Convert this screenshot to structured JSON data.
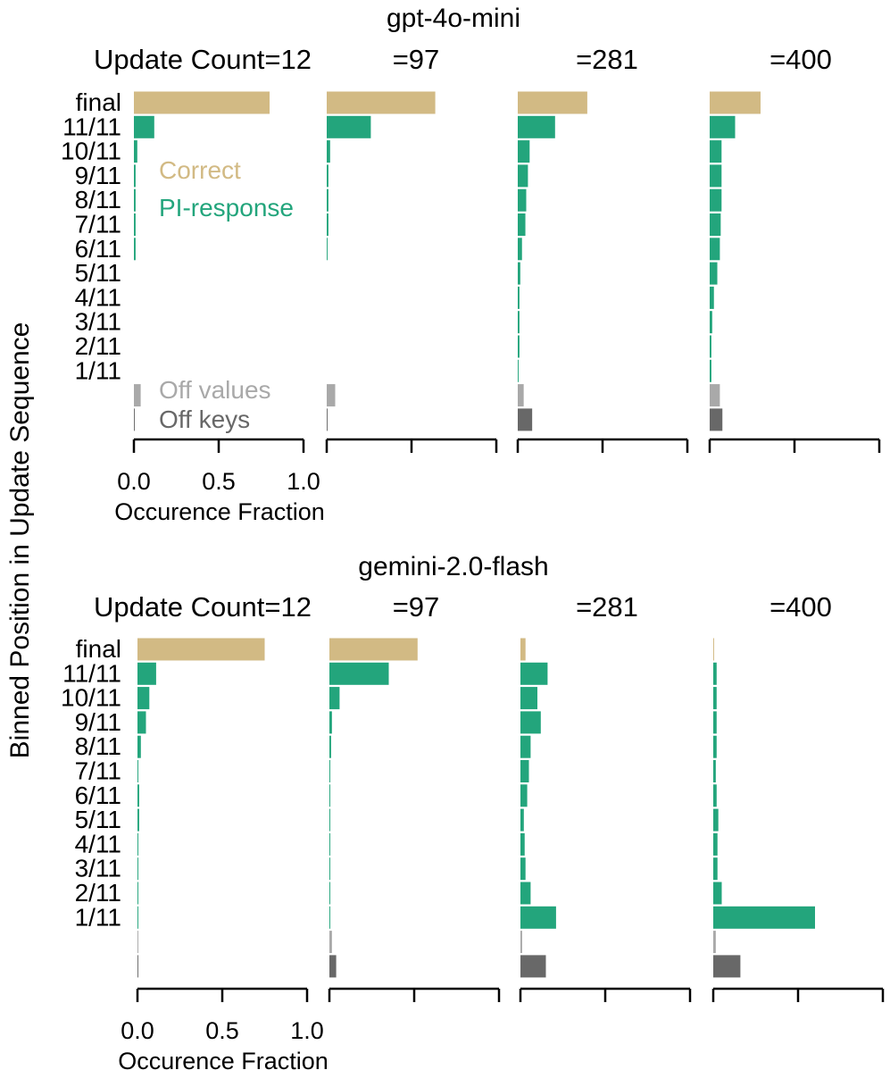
{
  "figure": {
    "ylabel": "Binned Position in Update Sequence",
    "xlabel": "Occurence Fraction",
    "xlim": [
      0,
      1
    ],
    "xticks": [
      "0.0",
      "0.5",
      "1.0"
    ],
    "categories": [
      "final",
      "11/11",
      "10/11",
      "9/11",
      "8/11",
      "7/11",
      "6/11",
      "5/11",
      "4/11",
      "3/11",
      "2/11",
      "1/11",
      "",
      ""
    ],
    "legend": [
      {
        "label": "Correct",
        "color": "#d2ba84"
      },
      {
        "label": "PI-response",
        "color": "#23a57c"
      },
      {
        "label": "Off values",
        "color": "#a9a9a9"
      },
      {
        "label": "Off keys",
        "color": "#686868"
      }
    ]
  },
  "chart_data": [
    {
      "type": "bar",
      "title": "gpt-4o-mini",
      "panels": [
        {
          "title": "Update Count=12",
          "values": [
            0.8,
            0.12,
            0.02,
            0.01,
            0.01,
            0.01,
            0.01,
            0,
            0,
            0,
            0,
            0,
            0.04,
            0.005
          ]
        },
        {
          "title": "=97",
          "values": [
            0.64,
            0.26,
            0.02,
            0.01,
            0.01,
            0.01,
            0.005,
            0,
            0,
            0,
            0,
            0,
            0.05,
            0.005
          ]
        },
        {
          "title": "=281",
          "values": [
            0.41,
            0.22,
            0.07,
            0.06,
            0.05,
            0.045,
            0.025,
            0.015,
            0.01,
            0.01,
            0.01,
            0.005,
            0.035,
            0.085
          ]
        },
        {
          "title": "=400",
          "values": [
            0.3,
            0.15,
            0.07,
            0.07,
            0.07,
            0.065,
            0.06,
            0.045,
            0.025,
            0.015,
            0.01,
            0.01,
            0.06,
            0.075
          ]
        }
      ]
    },
    {
      "type": "bar",
      "title": "gemini-2.0-flash",
      "panels": [
        {
          "title": "Update Count=12",
          "values": [
            0.75,
            0.11,
            0.07,
            0.05,
            0.02,
            0.005,
            0.01,
            0.01,
            0.005,
            0.005,
            0.005,
            0.005,
            0.005,
            0.005
          ]
        },
        {
          "title": "=97",
          "values": [
            0.52,
            0.35,
            0.06,
            0.015,
            0.01,
            0.005,
            0.005,
            0.005,
            0.005,
            0.005,
            0.005,
            0.005,
            0.015,
            0.04
          ]
        },
        {
          "title": "=281",
          "values": [
            0.03,
            0.16,
            0.1,
            0.12,
            0.06,
            0.05,
            0.04,
            0.02,
            0.025,
            0.03,
            0.06,
            0.21,
            0.01,
            0.15
          ]
        },
        {
          "title": "=400",
          "values": [
            0.005,
            0.02,
            0.02,
            0.02,
            0.02,
            0.015,
            0.02,
            0.03,
            0.025,
            0.025,
            0.05,
            0.6,
            0.015,
            0.16
          ]
        }
      ]
    }
  ]
}
